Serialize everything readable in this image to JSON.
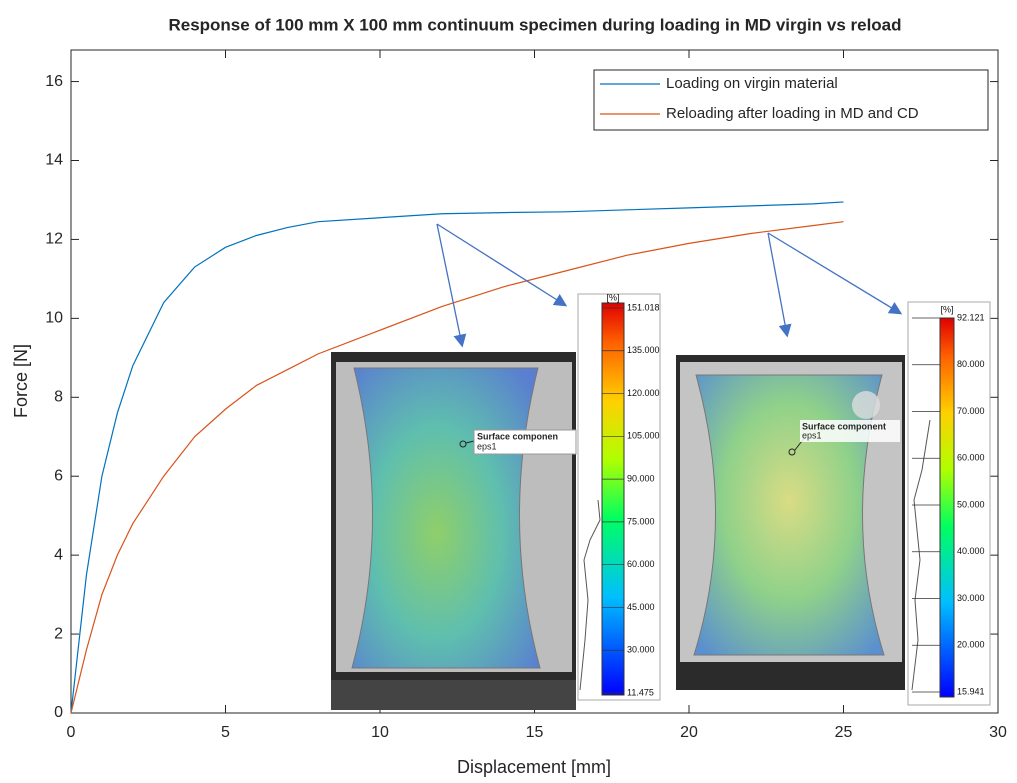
{
  "chart_data": {
    "type": "line",
    "title": "Response of 100 mm X 100 mm continuum specimen during loading in MD virgin vs reload",
    "x_label": "Displacement [mm]",
    "y_label": "Force [N]",
    "x": [
      0,
      0.5,
      1,
      1.5,
      2,
      3,
      4,
      5,
      6,
      7,
      8,
      10,
      12,
      14,
      16,
      18,
      20,
      22,
      24,
      25
    ],
    "series": [
      {
        "name": "Loading on virgin material",
        "color": "#0072bd",
        "values": [
          0,
          3.5,
          6,
          7.6,
          8.8,
          10.4,
          11.3,
          11.8,
          12.1,
          12.3,
          12.45,
          12.55,
          12.65,
          12.68,
          12.7,
          12.75,
          12.8,
          12.85,
          12.9,
          12.95
        ]
      },
      {
        "name": "Reloading after loading in MD and CD",
        "color": "#d95319",
        "values": [
          0,
          1.6,
          3.0,
          4.0,
          4.8,
          6.0,
          7.0,
          7.7,
          8.3,
          8.7,
          9.1,
          9.7,
          10.3,
          10.8,
          11.2,
          11.6,
          11.9,
          12.15,
          12.35,
          12.45
        ]
      }
    ],
    "xlim": [
      0,
      30
    ],
    "xticks": [
      0,
      5,
      10,
      15,
      20,
      25,
      30
    ],
    "ylim": [
      0,
      16.8
    ],
    "yticks": [
      0,
      2,
      4,
      6,
      8,
      10,
      12,
      14,
      16
    ],
    "legend": "top-right",
    "insets": [
      {
        "label": "Surface componen",
        "sublabel": "eps1",
        "colorbar_unit": "[%]",
        "colorbar_labels": [
          "151.018",
          "135.000",
          "120.000",
          "105.000",
          "90.000",
          "75.000",
          "60.000",
          "45.000",
          "30.000",
          "11.475"
        ]
      },
      {
        "label": "Surface component",
        "sublabel": "eps1",
        "colorbar_unit": "[%]",
        "colorbar_labels": [
          "92.121",
          "80.000",
          "70.000",
          "60.000",
          "50.000",
          "40.000",
          "30.000",
          "20.000",
          "15.941"
        ]
      }
    ]
  }
}
